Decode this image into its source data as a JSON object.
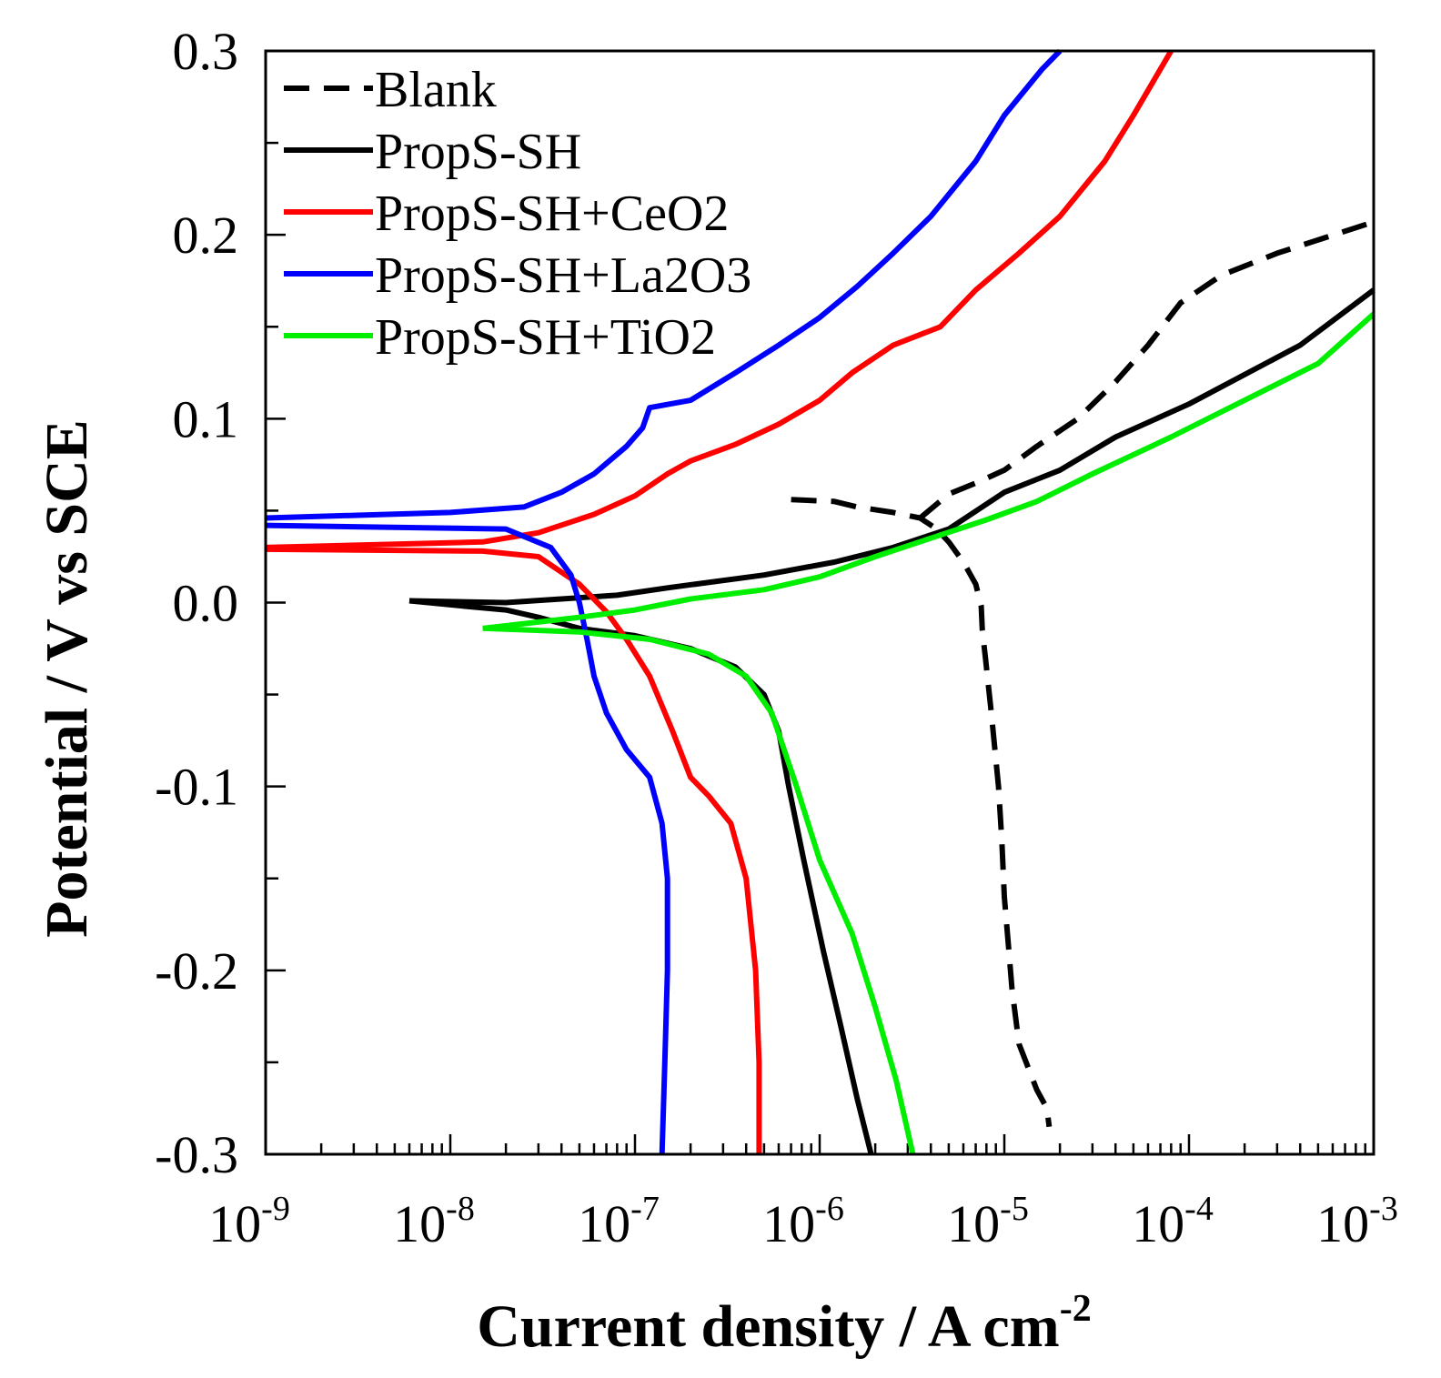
{
  "chart_data": {
    "type": "line",
    "title": "",
    "xlabel": "Current density / A cm",
    "xlabel_superscript": "-2",
    "ylabel": "Potential / V vs SCE",
    "x_scale": "log",
    "xlim": [
      1e-09,
      0.001
    ],
    "ylim": [
      -0.3,
      0.3
    ],
    "x_ticks": [
      {
        "base": "10",
        "exp": "-9",
        "value": 1e-09
      },
      {
        "base": "10",
        "exp": "-8",
        "value": 1e-08
      },
      {
        "base": "10",
        "exp": "-7",
        "value": 1e-07
      },
      {
        "base": "10",
        "exp": "-6",
        "value": 1e-06
      },
      {
        "base": "10",
        "exp": "-5",
        "value": 1e-05
      },
      {
        "base": "10",
        "exp": "-4",
        "value": 0.0001
      },
      {
        "base": "10",
        "exp": "-3",
        "value": 0.001
      }
    ],
    "y_ticks": [
      {
        "label": "0.3",
        "value": 0.3
      },
      {
        "label": "0.2",
        "value": 0.2
      },
      {
        "label": "0.1",
        "value": 0.1
      },
      {
        "label": "0.0",
        "value": 0.0
      },
      {
        "label": "-0.1",
        "value": -0.1
      },
      {
        "label": "-0.2",
        "value": -0.2
      },
      {
        "label": "-0.3",
        "value": -0.3
      }
    ],
    "legend_position": "top-left",
    "series": [
      {
        "name": "Blank",
        "color": "#000000",
        "dashed": true,
        "points": [
          [
            7e-07,
            0.056
          ],
          [
            1.2e-06,
            0.055
          ],
          [
            1.6e-06,
            0.052
          ],
          [
            2.5e-06,
            0.049
          ],
          [
            3.5e-06,
            0.046
          ],
          [
            4.3e-06,
            0.04
          ],
          [
            5e-06,
            0.033
          ],
          [
            6e-06,
            0.022
          ],
          [
            7e-06,
            0.01
          ],
          [
            7.5e-06,
            -0.002
          ],
          [
            7.6e-06,
            -0.015
          ],
          [
            7.9e-06,
            -0.03
          ],
          [
            8.5e-06,
            -0.06
          ],
          [
            9.3e-06,
            -0.1
          ],
          [
            9.7e-06,
            -0.13
          ],
          [
            1e-05,
            -0.16
          ],
          [
            1.06e-05,
            -0.19
          ],
          [
            1.1e-05,
            -0.21
          ],
          [
            1.2e-05,
            -0.24
          ],
          [
            1.5e-05,
            -0.265
          ],
          [
            1.7e-05,
            -0.275
          ],
          [
            1.75e-05,
            -0.285
          ]
        ],
        "anodic": [
          [
            3.5e-06,
            0.046
          ],
          [
            5e-06,
            0.059
          ],
          [
            7e-06,
            0.065
          ],
          [
            1e-05,
            0.072
          ],
          [
            1.5e-05,
            0.085
          ],
          [
            2.5e-05,
            0.1
          ],
          [
            4e-05,
            0.12
          ],
          [
            6e-05,
            0.14
          ],
          [
            9e-05,
            0.163
          ],
          [
            0.00015,
            0.178
          ],
          [
            0.0003,
            0.19
          ],
          [
            0.001,
            0.207
          ]
        ]
      },
      {
        "name": "PropS-SH",
        "color": "#000000",
        "dashed": false,
        "points": [
          [
            1.9e-06,
            -0.3
          ],
          [
            1.6e-06,
            -0.27
          ],
          [
            1.3e-06,
            -0.23
          ],
          [
            1.05e-06,
            -0.19
          ],
          [
            8.2e-07,
            -0.14
          ],
          [
            6.8e-07,
            -0.1
          ],
          [
            6e-07,
            -0.07
          ],
          [
            5e-07,
            -0.05
          ],
          [
            3.5e-07,
            -0.035
          ],
          [
            2e-07,
            -0.025
          ],
          [
            1e-07,
            -0.018
          ],
          [
            5e-08,
            -0.014
          ],
          [
            3e-08,
            -0.008
          ],
          [
            2e-08,
            -0.004
          ],
          [
            1.2e-08,
            -0.002
          ],
          [
            6e-09,
            0.001
          ]
        ],
        "anodic": [
          [
            6e-09,
            0.001
          ],
          [
            2e-08,
            0.0
          ],
          [
            8e-08,
            0.004
          ],
          [
            1.5e-07,
            0.008
          ],
          [
            5e-07,
            0.015
          ],
          [
            1.2e-06,
            0.022
          ],
          [
            2.5e-06,
            0.03
          ],
          [
            5e-06,
            0.04
          ],
          [
            1e-05,
            0.06
          ],
          [
            2e-05,
            0.072
          ],
          [
            4e-05,
            0.09
          ],
          [
            0.0001,
            0.108
          ],
          [
            0.0004,
            0.14
          ],
          [
            0.001,
            0.17
          ]
        ]
      },
      {
        "name": "PropS-SH+CeO2",
        "color": "#ff0000",
        "dashed": false,
        "points": [
          [
            4.7e-07,
            -0.3
          ],
          [
            4.7e-07,
            -0.25
          ],
          [
            4.5e-07,
            -0.2
          ],
          [
            4e-07,
            -0.15
          ],
          [
            3.3e-07,
            -0.12
          ],
          [
            2.5e-07,
            -0.105
          ],
          [
            2e-07,
            -0.095
          ],
          [
            1.6e-07,
            -0.07
          ],
          [
            1.2e-07,
            -0.04
          ],
          [
            9e-08,
            -0.02
          ],
          [
            7e-08,
            -0.005
          ],
          [
            5e-08,
            0.01
          ],
          [
            3e-08,
            0.025
          ],
          [
            1.5e-08,
            0.028
          ],
          [
            1e-09,
            0.029
          ]
        ],
        "anodic": [
          [
            1e-09,
            0.03
          ],
          [
            1.5e-08,
            0.033
          ],
          [
            3e-08,
            0.038
          ],
          [
            6e-08,
            0.048
          ],
          [
            1e-07,
            0.058
          ],
          [
            1.5e-07,
            0.07
          ],
          [
            2e-07,
            0.077
          ],
          [
            3.5e-07,
            0.086
          ],
          [
            6e-07,
            0.097
          ],
          [
            1e-06,
            0.11
          ],
          [
            1.5e-06,
            0.125
          ],
          [
            2.5e-06,
            0.14
          ],
          [
            4.5e-06,
            0.15
          ],
          [
            7e-06,
            0.17
          ],
          [
            1.2e-05,
            0.19
          ],
          [
            2e-05,
            0.21
          ],
          [
            3.5e-05,
            0.24
          ],
          [
            5e-05,
            0.265
          ],
          [
            8e-05,
            0.3
          ]
        ]
      },
      {
        "name": "PropS-SH+La2O3",
        "color": "#0000ff",
        "dashed": false,
        "points": [
          [
            1.4e-07,
            -0.3
          ],
          [
            1.45e-07,
            -0.25
          ],
          [
            1.5e-07,
            -0.2
          ],
          [
            1.5e-07,
            -0.15
          ],
          [
            1.4e-07,
            -0.12
          ],
          [
            1.2e-07,
            -0.095
          ],
          [
            9e-08,
            -0.08
          ],
          [
            7e-08,
            -0.06
          ],
          [
            6e-08,
            -0.04
          ],
          [
            5.5e-08,
            -0.02
          ],
          [
            5e-08,
            0.0
          ],
          [
            4.5e-08,
            0.015
          ],
          [
            3.5e-08,
            0.03
          ],
          [
            2e-08,
            0.04
          ],
          [
            1e-09,
            0.042
          ]
        ],
        "anodic": [
          [
            1e-09,
            0.046
          ],
          [
            1e-08,
            0.049
          ],
          [
            2.5e-08,
            0.052
          ],
          [
            4e-08,
            0.06
          ],
          [
            6e-08,
            0.07
          ],
          [
            9e-08,
            0.085
          ],
          [
            1.1e-07,
            0.095
          ],
          [
            1.2e-07,
            0.106
          ],
          [
            2e-07,
            0.11
          ],
          [
            3.5e-07,
            0.125
          ],
          [
            6e-07,
            0.14
          ],
          [
            1e-06,
            0.155
          ],
          [
            1.6e-06,
            0.172
          ],
          [
            2.5e-06,
            0.19
          ],
          [
            4e-06,
            0.21
          ],
          [
            7e-06,
            0.24
          ],
          [
            1e-05,
            0.265
          ],
          [
            1.6e-05,
            0.29
          ],
          [
            2e-05,
            0.3
          ]
        ]
      },
      {
        "name": "PropS-SH+TiO2",
        "color": "#00ee00",
        "dashed": false,
        "points": [
          [
            3.2e-06,
            -0.3
          ],
          [
            2.6e-06,
            -0.26
          ],
          [
            2e-06,
            -0.22
          ],
          [
            1.5e-06,
            -0.18
          ],
          [
            1e-06,
            -0.14
          ],
          [
            7.5e-07,
            -0.1
          ],
          [
            5.5e-07,
            -0.06
          ],
          [
            4e-07,
            -0.04
          ],
          [
            2.5e-07,
            -0.028
          ],
          [
            1.2e-07,
            -0.02
          ],
          [
            5e-08,
            -0.016
          ],
          [
            1.5e-08,
            -0.014
          ]
        ],
        "anodic": [
          [
            1.5e-08,
            -0.014
          ],
          [
            5e-08,
            -0.008
          ],
          [
            1e-07,
            -0.004
          ],
          [
            2e-07,
            0.002
          ],
          [
            5e-07,
            0.007
          ],
          [
            1e-06,
            0.014
          ],
          [
            2e-06,
            0.025
          ],
          [
            4e-06,
            0.035
          ],
          [
            8e-06,
            0.045
          ],
          [
            1.5e-05,
            0.055
          ],
          [
            3e-05,
            0.07
          ],
          [
            8e-05,
            0.09
          ],
          [
            0.0002,
            0.11
          ],
          [
            0.0005,
            0.13
          ],
          [
            0.001,
            0.157
          ]
        ]
      }
    ]
  }
}
